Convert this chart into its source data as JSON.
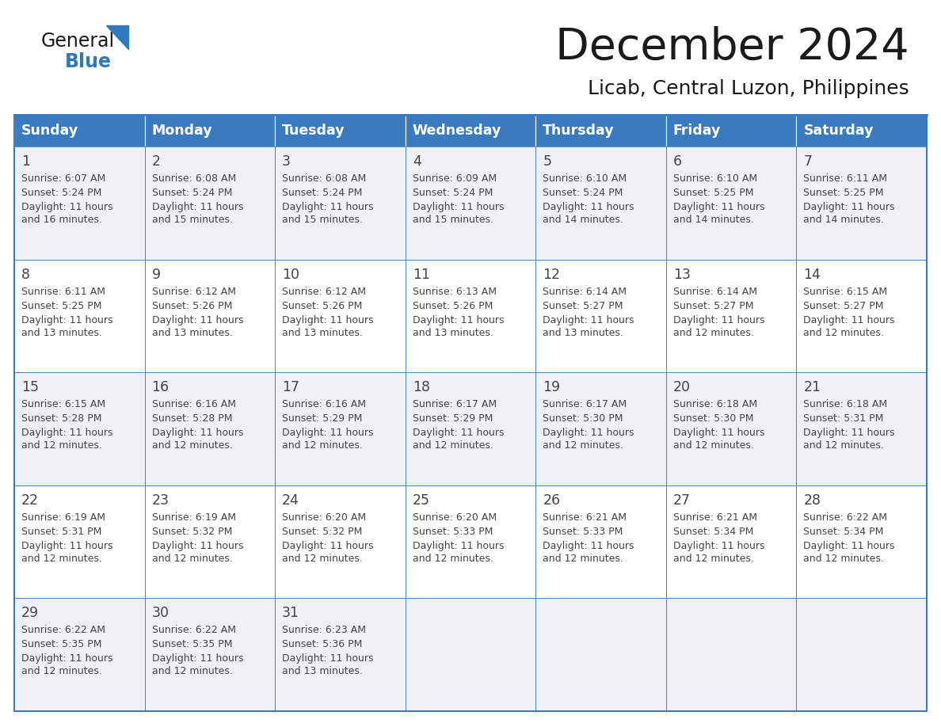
{
  "title": "December 2024",
  "subtitle": "Licab, Central Luzon, Philippines",
  "days_of_week": [
    "Sunday",
    "Monday",
    "Tuesday",
    "Wednesday",
    "Thursday",
    "Friday",
    "Saturday"
  ],
  "header_bg": "#3a7abf",
  "header_text": "#ffffff",
  "cell_bg_even": "#eef2f7",
  "cell_bg_odd": "#ffffff",
  "border_color": "#3a7abf",
  "text_color": "#444444",
  "title_color": "#1a1a1a",
  "logo_color_general": "#1a1a1a",
  "logo_color_blue": "#2e7abf",
  "calendar_data": [
    [
      {
        "day": 1,
        "sunrise": "6:07 AM",
        "sunset": "5:24 PM",
        "daylight": "11 hours and 16 minutes."
      },
      {
        "day": 2,
        "sunrise": "6:08 AM",
        "sunset": "5:24 PM",
        "daylight": "11 hours and 15 minutes."
      },
      {
        "day": 3,
        "sunrise": "6:08 AM",
        "sunset": "5:24 PM",
        "daylight": "11 hours and 15 minutes."
      },
      {
        "day": 4,
        "sunrise": "6:09 AM",
        "sunset": "5:24 PM",
        "daylight": "11 hours and 15 minutes."
      },
      {
        "day": 5,
        "sunrise": "6:10 AM",
        "sunset": "5:24 PM",
        "daylight": "11 hours and 14 minutes."
      },
      {
        "day": 6,
        "sunrise": "6:10 AM",
        "sunset": "5:25 PM",
        "daylight": "11 hours and 14 minutes."
      },
      {
        "day": 7,
        "sunrise": "6:11 AM",
        "sunset": "5:25 PM",
        "daylight": "11 hours and 14 minutes."
      }
    ],
    [
      {
        "day": 8,
        "sunrise": "6:11 AM",
        "sunset": "5:25 PM",
        "daylight": "11 hours and 13 minutes."
      },
      {
        "day": 9,
        "sunrise": "6:12 AM",
        "sunset": "5:26 PM",
        "daylight": "11 hours and 13 minutes."
      },
      {
        "day": 10,
        "sunrise": "6:12 AM",
        "sunset": "5:26 PM",
        "daylight": "11 hours and 13 minutes."
      },
      {
        "day": 11,
        "sunrise": "6:13 AM",
        "sunset": "5:26 PM",
        "daylight": "11 hours and 13 minutes."
      },
      {
        "day": 12,
        "sunrise": "6:14 AM",
        "sunset": "5:27 PM",
        "daylight": "11 hours and 13 minutes."
      },
      {
        "day": 13,
        "sunrise": "6:14 AM",
        "sunset": "5:27 PM",
        "daylight": "11 hours and 12 minutes."
      },
      {
        "day": 14,
        "sunrise": "6:15 AM",
        "sunset": "5:27 PM",
        "daylight": "11 hours and 12 minutes."
      }
    ],
    [
      {
        "day": 15,
        "sunrise": "6:15 AM",
        "sunset": "5:28 PM",
        "daylight": "11 hours and 12 minutes."
      },
      {
        "day": 16,
        "sunrise": "6:16 AM",
        "sunset": "5:28 PM",
        "daylight": "11 hours and 12 minutes."
      },
      {
        "day": 17,
        "sunrise": "6:16 AM",
        "sunset": "5:29 PM",
        "daylight": "11 hours and 12 minutes."
      },
      {
        "day": 18,
        "sunrise": "6:17 AM",
        "sunset": "5:29 PM",
        "daylight": "11 hours and 12 minutes."
      },
      {
        "day": 19,
        "sunrise": "6:17 AM",
        "sunset": "5:30 PM",
        "daylight": "11 hours and 12 minutes."
      },
      {
        "day": 20,
        "sunrise": "6:18 AM",
        "sunset": "5:30 PM",
        "daylight": "11 hours and 12 minutes."
      },
      {
        "day": 21,
        "sunrise": "6:18 AM",
        "sunset": "5:31 PM",
        "daylight": "11 hours and 12 minutes."
      }
    ],
    [
      {
        "day": 22,
        "sunrise": "6:19 AM",
        "sunset": "5:31 PM",
        "daylight": "11 hours and 12 minutes."
      },
      {
        "day": 23,
        "sunrise": "6:19 AM",
        "sunset": "5:32 PM",
        "daylight": "11 hours and 12 minutes."
      },
      {
        "day": 24,
        "sunrise": "6:20 AM",
        "sunset": "5:32 PM",
        "daylight": "11 hours and 12 minutes."
      },
      {
        "day": 25,
        "sunrise": "6:20 AM",
        "sunset": "5:33 PM",
        "daylight": "11 hours and 12 minutes."
      },
      {
        "day": 26,
        "sunrise": "6:21 AM",
        "sunset": "5:33 PM",
        "daylight": "11 hours and 12 minutes."
      },
      {
        "day": 27,
        "sunrise": "6:21 AM",
        "sunset": "5:34 PM",
        "daylight": "11 hours and 12 minutes."
      },
      {
        "day": 28,
        "sunrise": "6:22 AM",
        "sunset": "5:34 PM",
        "daylight": "11 hours and 12 minutes."
      }
    ],
    [
      {
        "day": 29,
        "sunrise": "6:22 AM",
        "sunset": "5:35 PM",
        "daylight": "11 hours and 12 minutes."
      },
      {
        "day": 30,
        "sunrise": "6:22 AM",
        "sunset": "5:35 PM",
        "daylight": "11 hours and 12 minutes."
      },
      {
        "day": 31,
        "sunrise": "6:23 AM",
        "sunset": "5:36 PM",
        "daylight": "11 hours and 13 minutes."
      },
      null,
      null,
      null,
      null
    ]
  ]
}
